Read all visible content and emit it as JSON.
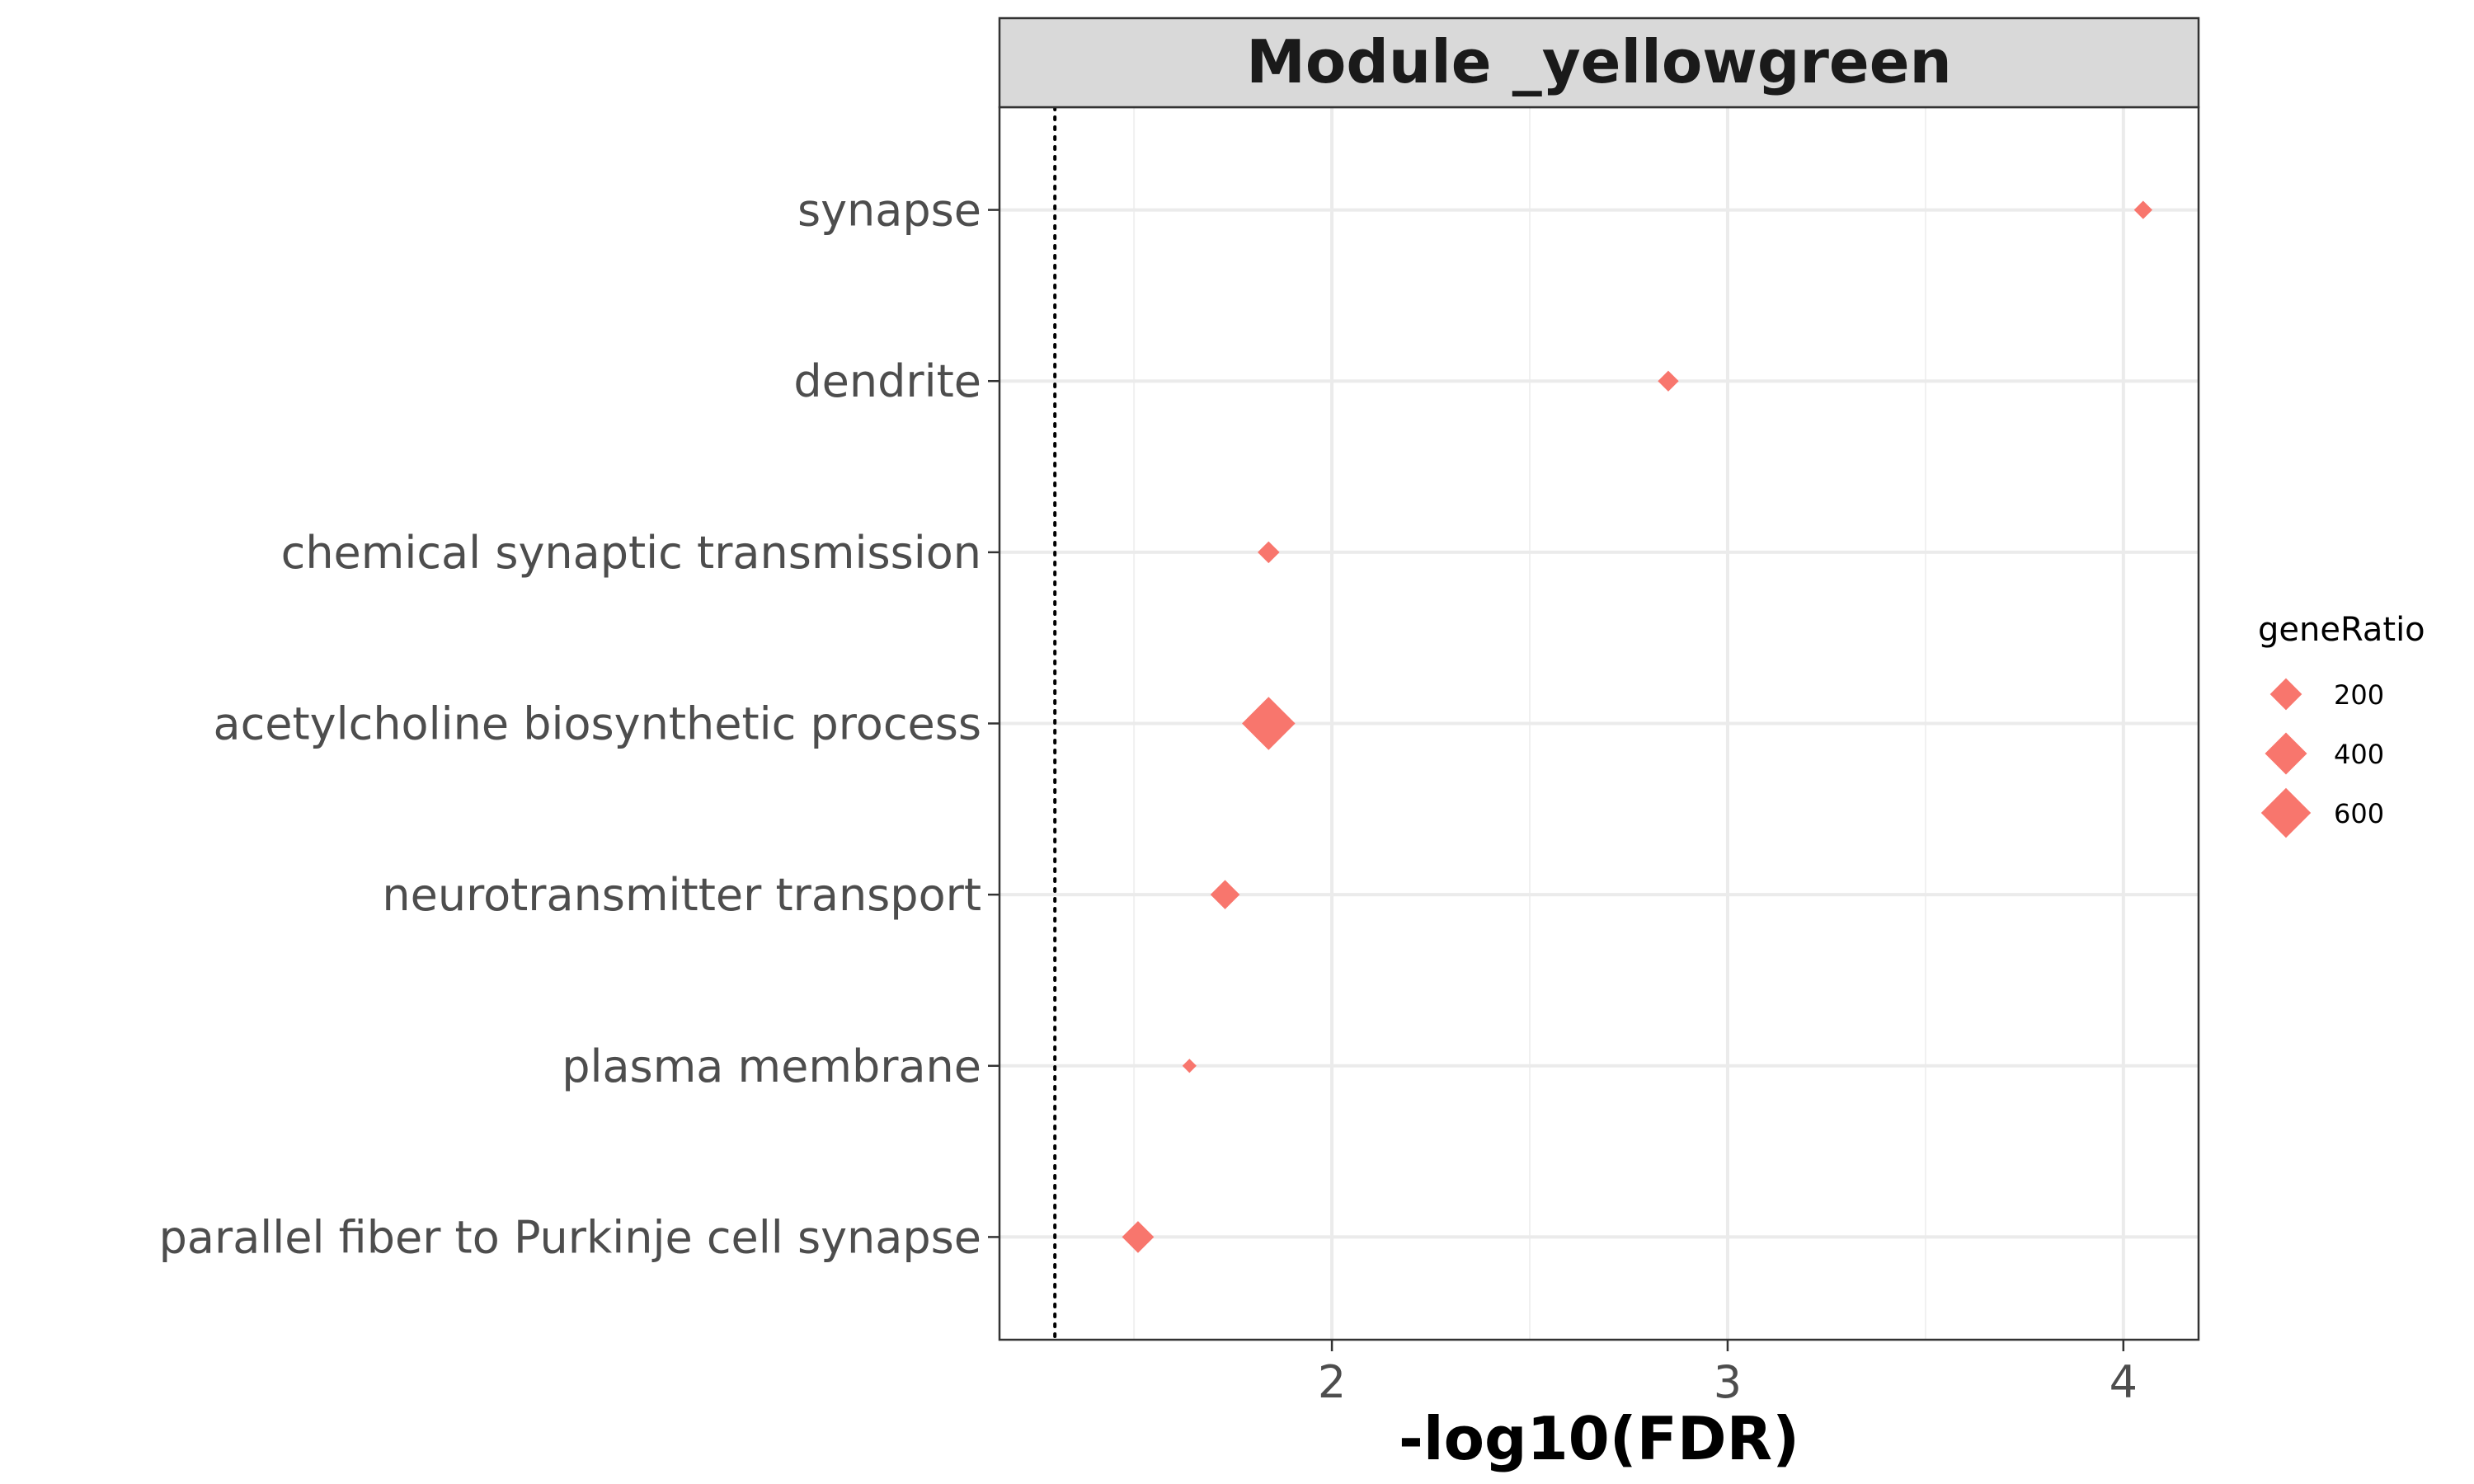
{
  "chart_data": {
    "type": "scatter",
    "title": "Module _yellowgreen",
    "xlabel": "-log10(FDR)",
    "ylabel": "",
    "xlim": [
      1.16,
      4.19
    ],
    "xticks": [
      2,
      3,
      4
    ],
    "x_minor_gridlines": [
      1.5,
      2.5,
      3.5
    ],
    "reference_line": {
      "x": 1.3,
      "style": "dotted"
    },
    "grid": true,
    "marker": "diamond",
    "color": "#F8766D",
    "categories": [
      "synapse",
      "dendrite",
      "chemical synaptic transmission",
      "acetylcholine biosynthetic process",
      "neurotransmitter transport",
      "plasma membrane",
      "parallel fiber to Purkinje cell synapse"
    ],
    "points": [
      {
        "term": "synapse",
        "x": 4.05,
        "geneRatio": 40
      },
      {
        "term": "dendrite",
        "x": 2.85,
        "geneRatio": 60
      },
      {
        "term": "chemical synaptic transmission",
        "x": 1.84,
        "geneRatio": 70
      },
      {
        "term": "acetylcholine biosynthetic process",
        "x": 1.84,
        "geneRatio": 700
      },
      {
        "term": "neurotransmitter transport",
        "x": 1.73,
        "geneRatio": 160
      },
      {
        "term": "plasma membrane",
        "x": 1.64,
        "geneRatio": 15
      },
      {
        "term": "parallel fiber to Purkinje cell synapse",
        "x": 1.51,
        "geneRatio": 200
      }
    ],
    "legend": {
      "title": "geneRatio",
      "position": "right",
      "entries": [
        {
          "label": "200",
          "value": 200
        },
        {
          "label": "400",
          "value": 400
        },
        {
          "label": "600",
          "value": 600
        }
      ]
    }
  }
}
